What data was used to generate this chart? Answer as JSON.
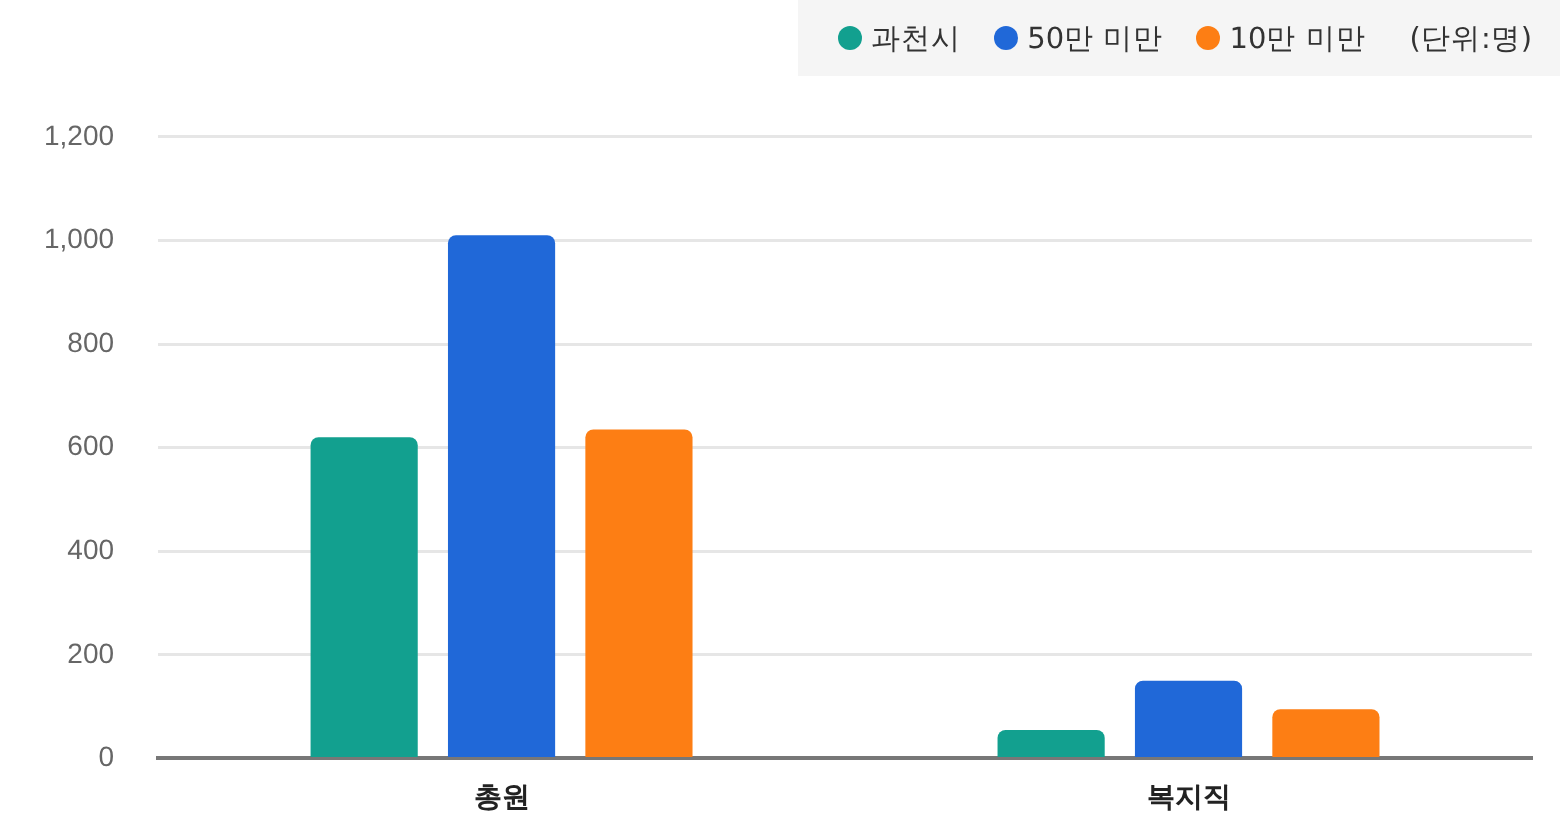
{
  "chart_data": {
    "type": "bar",
    "categories": [
      "총원",
      "복지직"
    ],
    "series": [
      {
        "name": "과천시",
        "color": "#12a08f",
        "values": [
          620,
          55
        ]
      },
      {
        "name": "50만 미만",
        "color": "#2068d8",
        "values": [
          1010,
          150
        ]
      },
      {
        "name": "10만 미만",
        "color": "#fd7e14",
        "values": [
          635,
          95
        ]
      }
    ],
    "ylim": [
      0,
      1200
    ],
    "yticks": [
      0,
      200,
      400,
      600,
      800,
      {
        "value": 1000,
        "label": "1,000"
      },
      {
        "value": 1200,
        "label": "1,200"
      }
    ],
    "grid": "y",
    "legend": "top right",
    "annotations": [
      "(단위:명)"
    ]
  }
}
